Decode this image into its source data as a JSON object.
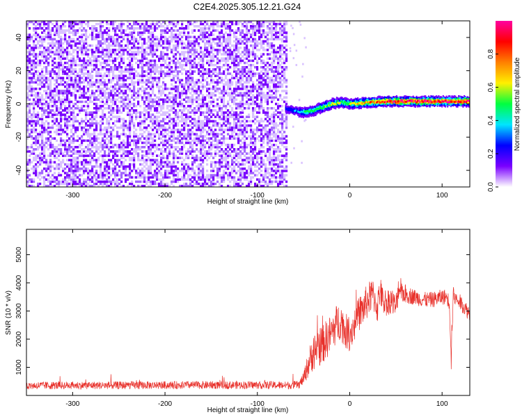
{
  "title": "C2E4.2025.305.12.21.G24",
  "chart_data": [
    {
      "type": "heatmap",
      "title": "C2E4.2025.305.12.21.G24",
      "xlabel": "Height of straight line (km)",
      "ylabel": "Frequency (Hz)",
      "xlim": [
        -350,
        130
      ],
      "ylim": [
        -50,
        50
      ],
      "x_ticks": [
        -300,
        -200,
        -100,
        0,
        100
      ],
      "x_tick_labels": [
        "-300",
        "-200",
        "-100",
        "0",
        "100"
      ],
      "y_ticks": [
        -40,
        -20,
        0,
        20,
        40
      ],
      "y_tick_labels": [
        "-40",
        "-20",
        "0",
        "20",
        "40"
      ],
      "noise_region_x": [
        -350,
        -68
      ],
      "signal_track": {
        "x": [
          -70,
          -60,
          -50,
          -40,
          -30,
          -20,
          -10,
          0,
          20,
          40,
          60,
          80,
          100,
          110,
          130
        ],
        "freq_hz": [
          -3,
          -4,
          -5,
          -4,
          -2,
          0,
          1,
          0,
          1,
          1.5,
          1.5,
          1.5,
          1.5,
          1.5,
          1.5
        ],
        "normalized_amplitude": [
          0.25,
          0.3,
          0.45,
          0.5,
          0.55,
          0.6,
          0.55,
          0.6,
          0.75,
          0.85,
          0.9,
          0.92,
          0.92,
          0.9,
          0.92
        ]
      },
      "colorbar": {
        "label": "Normalized spectral amplitude",
        "range": [
          0,
          1
        ],
        "ticks": [
          0.0,
          0.2,
          0.4,
          0.6,
          0.8
        ],
        "tick_labels": [
          "0.0",
          "0.2",
          "0.4",
          "0.6",
          "0.8"
        ],
        "colors": [
          "#ffffff",
          "#7a00ff",
          "#0000ff",
          "#00e5ff",
          "#00ff40",
          "#fff000",
          "#ff8000",
          "#ff0000",
          "#ff00a0"
        ]
      }
    },
    {
      "type": "line",
      "xlabel": "Height of straight line (km)",
      "ylabel": "SNR (10 * v/v)",
      "xlim": [
        -350,
        130
      ],
      "ylim": [
        0,
        5900
      ],
      "x_ticks": [
        -300,
        -200,
        -100,
        0,
        100
      ],
      "x_tick_labels": [
        "-300",
        "-200",
        "-100",
        "0",
        "100"
      ],
      "y_ticks": [
        1000,
        2000,
        3000,
        4000,
        5000
      ],
      "y_tick_labels": [
        "1000",
        "2000",
        "3000",
        "4000",
        "5000"
      ],
      "series": [
        {
          "name": "SNR",
          "color": "#e8302a",
          "x": [
            -350,
            -300,
            -250,
            -200,
            -150,
            -100,
            -70,
            -55,
            -50,
            -45,
            -40,
            -35,
            -30,
            -25,
            -20,
            -15,
            -10,
            -5,
            0,
            5,
            10,
            15,
            20,
            25,
            30,
            33,
            35,
            40,
            45,
            50,
            53,
            55,
            60,
            70,
            80,
            90,
            100,
            105,
            108,
            110,
            112,
            115,
            120,
            125,
            130
          ],
          "y": [
            350,
            360,
            360,
            365,
            370,
            370,
            360,
            380,
            600,
            1100,
            1500,
            1700,
            1800,
            2000,
            2200,
            2500,
            2700,
            2300,
            2200,
            2500,
            2900,
            3100,
            3400,
            3600,
            3100,
            3800,
            3400,
            3300,
            3400,
            3100,
            3900,
            3700,
            3600,
            3500,
            3400,
            3400,
            3500,
            3500,
            3300,
            1500,
            3600,
            3400,
            3300,
            3100,
            2900
          ],
          "noise_amplitude": [
            200,
            200,
            200,
            200,
            200,
            200,
            200,
            200,
            300,
            700,
            900,
            1000,
            1000,
            1000,
            1000,
            1000,
            1000,
            900,
            900,
            900,
            900,
            900,
            900,
            800,
            800,
            800,
            700,
            700,
            700,
            700,
            700,
            500,
            500,
            400,
            400,
            400,
            400,
            400,
            400,
            1200,
            400,
            400,
            400,
            400,
            400
          ]
        }
      ]
    }
  ]
}
